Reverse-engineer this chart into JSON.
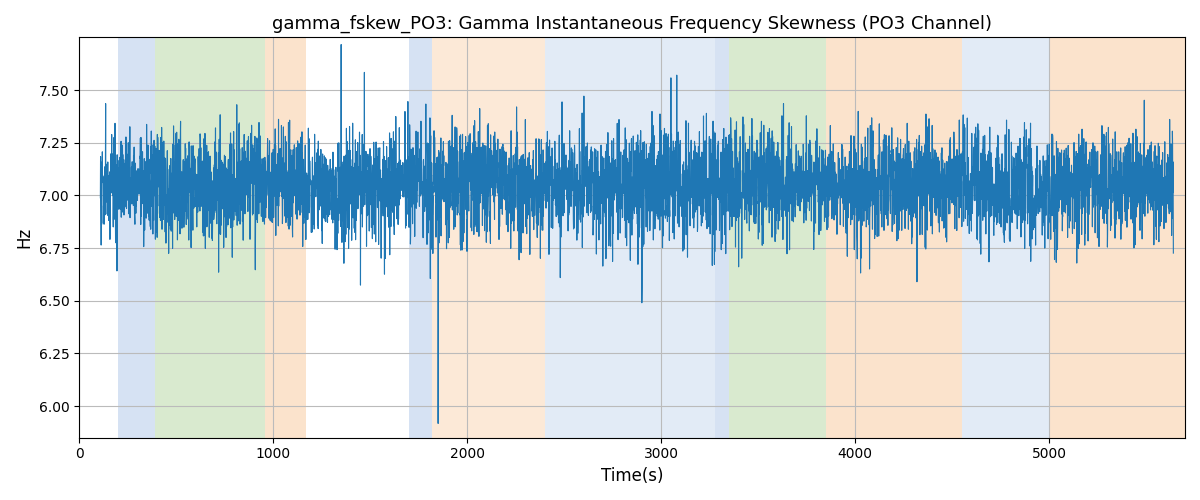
{
  "title": "gamma_fskew_PO3: Gamma Instantaneous Frequency Skewness (PO3 Channel)",
  "xlabel": "Time(s)",
  "ylabel": "Hz",
  "xlim": [
    0,
    5700
  ],
  "ylim": [
    5.85,
    7.75
  ],
  "yticks": [
    6.0,
    6.25,
    6.5,
    6.75,
    7.0,
    7.25,
    7.5
  ],
  "line_color": "#1f77b4",
  "line_width": 0.8,
  "background_color": "#ffffff",
  "grid_color": "#bbbbbb",
  "bands": [
    {
      "xmin": 200,
      "xmax": 390,
      "color": "#aec6e8",
      "alpha": 0.5
    },
    {
      "xmin": 390,
      "xmax": 960,
      "color": "#b5d7a0",
      "alpha": 0.5
    },
    {
      "xmin": 960,
      "xmax": 1170,
      "color": "#f9c89b",
      "alpha": 0.5
    },
    {
      "xmin": 1700,
      "xmax": 1820,
      "color": "#aec6e8",
      "alpha": 0.5
    },
    {
      "xmin": 1820,
      "xmax": 2400,
      "color": "#f9c89b",
      "alpha": 0.4
    },
    {
      "xmin": 2400,
      "xmax": 2650,
      "color": "#aec6e8",
      "alpha": 0.35
    },
    {
      "xmin": 2650,
      "xmax": 3280,
      "color": "#aec6e8",
      "alpha": 0.35
    },
    {
      "xmin": 3280,
      "xmax": 3350,
      "color": "#aec6e8",
      "alpha": 0.5
    },
    {
      "xmin": 3350,
      "xmax": 3850,
      "color": "#b5d7a0",
      "alpha": 0.5
    },
    {
      "xmin": 3850,
      "xmax": 4550,
      "color": "#f9c89b",
      "alpha": 0.5
    },
    {
      "xmin": 4550,
      "xmax": 5000,
      "color": "#aec6e8",
      "alpha": 0.35
    },
    {
      "xmin": 5000,
      "xmax": 5700,
      "color": "#f9c89b",
      "alpha": 0.5
    }
  ],
  "n_points": 5500,
  "t_start": 110,
  "t_end": 5640,
  "mean": 7.05,
  "noise_std": 0.13,
  "slow_std": 0.001,
  "slow_clip": 0.15
}
